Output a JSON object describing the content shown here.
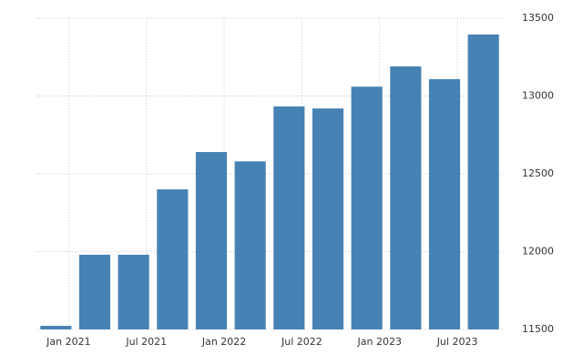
{
  "chart_data": {
    "type": "bar",
    "categories": [
      "Jan 2021",
      null,
      "Jul 2021",
      null,
      "Jan 2022",
      null,
      "Jul 2022",
      null,
      "Jan 2023",
      null,
      "Jul 2023",
      null
    ],
    "values": [
      11523,
      11980,
      11980,
      12400,
      12640,
      12580,
      12933,
      12920,
      13060,
      13190,
      13108,
      13395
    ],
    "color": "#4682b4",
    "ylim": [
      11500,
      13500
    ],
    "yticks": [
      11500,
      12000,
      12500,
      13000,
      13500
    ],
    "grid": true
  }
}
